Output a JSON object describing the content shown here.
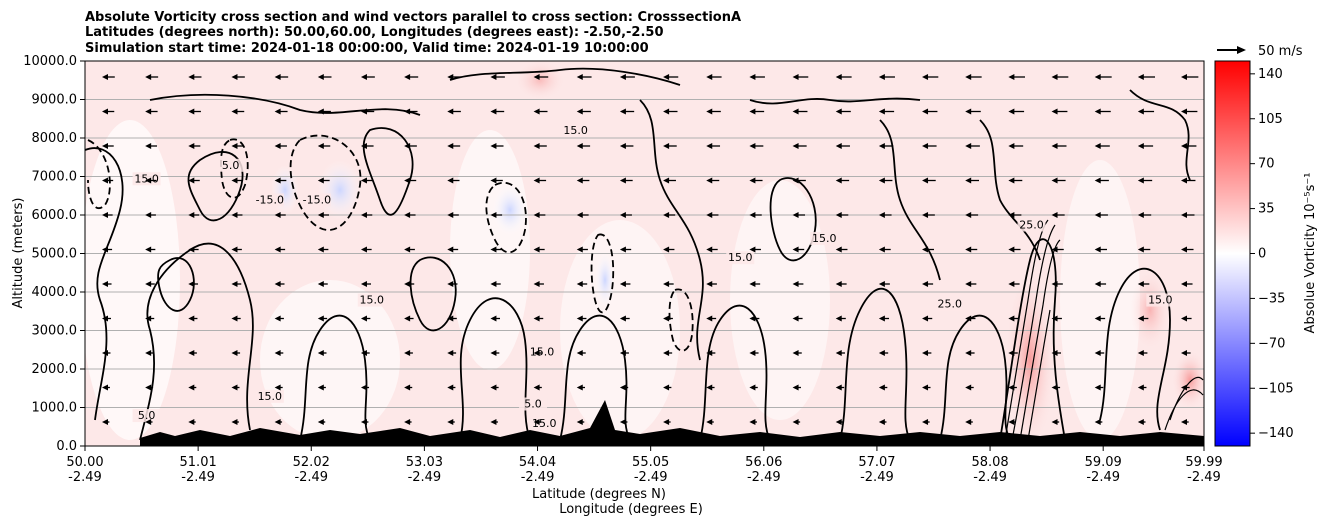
{
  "figure": {
    "title_lines": [
      "Absolute Vorticity cross section and wind vectors parallel to cross section: CrosssectionA",
      "Latitudes (degrees north): 50.00,60.00, Longitudes (degrees east): -2.50,-2.50",
      "Simulation start time: 2024-01-18 00:00:00, Valid time: 2024-01-19 10:00:00"
    ],
    "quiver_key_label": "50 m/s"
  },
  "chart_data": {
    "type": "heatmap",
    "title": "Absolute Vorticity cross section and wind vectors parallel to cross section: CrosssectionA",
    "subtitle_lines": [
      "Latitudes (degrees north): 50.00,60.00, Longitudes (degrees east): -2.50,-2.50",
      "Simulation start time: 2024-01-18 00:00:00, Valid time: 2024-01-19 10:00:00"
    ],
    "xlabel": "Latitude (degrees N)",
    "xlabel2": "Longitude (degrees E)",
    "ylabel": "Altitude (meters)",
    "x_range": [
      50.0,
      59.99
    ],
    "ylim": [
      0,
      10000
    ],
    "x_ticks": [
      {
        "lat": 50.0,
        "lat_label": "50.00",
        "lon_label": "-2.49"
      },
      {
        "lat": 51.01,
        "lat_label": "51.01",
        "lon_label": "-2.49"
      },
      {
        "lat": 52.02,
        "lat_label": "52.02",
        "lon_label": "-2.49"
      },
      {
        "lat": 53.03,
        "lat_label": "53.03",
        "lon_label": "-2.49"
      },
      {
        "lat": 54.04,
        "lat_label": "54.04",
        "lon_label": "-2.49"
      },
      {
        "lat": 55.05,
        "lat_label": "55.05",
        "lon_label": "-2.49"
      },
      {
        "lat": 56.06,
        "lat_label": "56.06",
        "lon_label": "-2.49"
      },
      {
        "lat": 57.07,
        "lat_label": "57.07",
        "lon_label": "-2.49"
      },
      {
        "lat": 58.08,
        "lat_label": "58.08",
        "lon_label": "-2.49"
      },
      {
        "lat": 59.09,
        "lat_label": "59.09",
        "lon_label": "-2.49"
      },
      {
        "lat": 59.99,
        "lat_label": "59.99",
        "lon_label": "-2.49"
      }
    ],
    "y_ticks": [
      {
        "value": 0,
        "label": "0.0"
      },
      {
        "value": 1000,
        "label": "1000.0"
      },
      {
        "value": 2000,
        "label": "2000.0"
      },
      {
        "value": 3000,
        "label": "3000.0"
      },
      {
        "value": 4000,
        "label": "4000.0"
      },
      {
        "value": 5000,
        "label": "5000.0"
      },
      {
        "value": 6000,
        "label": "6000.0"
      },
      {
        "value": 7000,
        "label": "7000.0"
      },
      {
        "value": 8000,
        "label": "8000.0"
      },
      {
        "value": 9000,
        "label": "9000.0"
      },
      {
        "value": 10000,
        "label": "10000.0"
      }
    ],
    "grid": "horizontal",
    "colorbar": {
      "label": "Absolue Vorticity 10⁻⁵s⁻¹",
      "range": [
        -150,
        150
      ],
      "ticks": [
        {
          "value": 140,
          "label": "140"
        },
        {
          "value": 105,
          "label": "105"
        },
        {
          "value": 70,
          "label": "70"
        },
        {
          "value": 35,
          "label": "35"
        },
        {
          "value": 0,
          "label": "0"
        },
        {
          "value": -35,
          "label": "−35"
        },
        {
          "value": -70,
          "label": "−70"
        },
        {
          "value": -105,
          "label": "−105"
        },
        {
          "value": -140,
          "label": "−140"
        }
      ],
      "colors": {
        "max": "#ff0000",
        "mid": "#ffffff",
        "min": "#0000ff"
      }
    },
    "contour_levels": [
      -15,
      5,
      15,
      25
    ],
    "contour_labels": [
      {
        "text": "15.0",
        "lat": 50.55,
        "alt": 6850
      },
      {
        "text": "5.0",
        "lat": 51.3,
        "alt": 7200
      },
      {
        "text": "-15.0",
        "lat": 51.65,
        "alt": 6300
      },
      {
        "text": "-15.0",
        "lat": 52.07,
        "alt": 6300
      },
      {
        "text": "15.0",
        "lat": 54.38,
        "alt": 8100
      },
      {
        "text": "15.0",
        "lat": 55.85,
        "alt": 4800
      },
      {
        "text": "15.0",
        "lat": 56.6,
        "alt": 5300
      },
      {
        "text": "15.0",
        "lat": 52.56,
        "alt": 3700
      },
      {
        "text": "25.0",
        "lat": 57.72,
        "alt": 3600
      },
      {
        "text": "15.0",
        "lat": 54.08,
        "alt": 2350
      },
      {
        "text": "15.0",
        "lat": 51.65,
        "alt": 1200
      },
      {
        "text": "5.0",
        "lat": 50.55,
        "alt": 700
      },
      {
        "text": "15.0",
        "lat": 59.6,
        "alt": 3700
      },
      {
        "text": "25.0",
        "lat": 58.45,
        "alt": 5650
      },
      {
        "text": "15.0",
        "lat": 54.1,
        "alt": 500
      },
      {
        "text": "5.0",
        "lat": 54.0,
        "alt": 1000
      }
    ],
    "wind_vectors": {
      "component": "parallel to cross section",
      "reference_speed_ms": 50,
      "dominant_direction": "southward (toward lower latitude)"
    }
  }
}
